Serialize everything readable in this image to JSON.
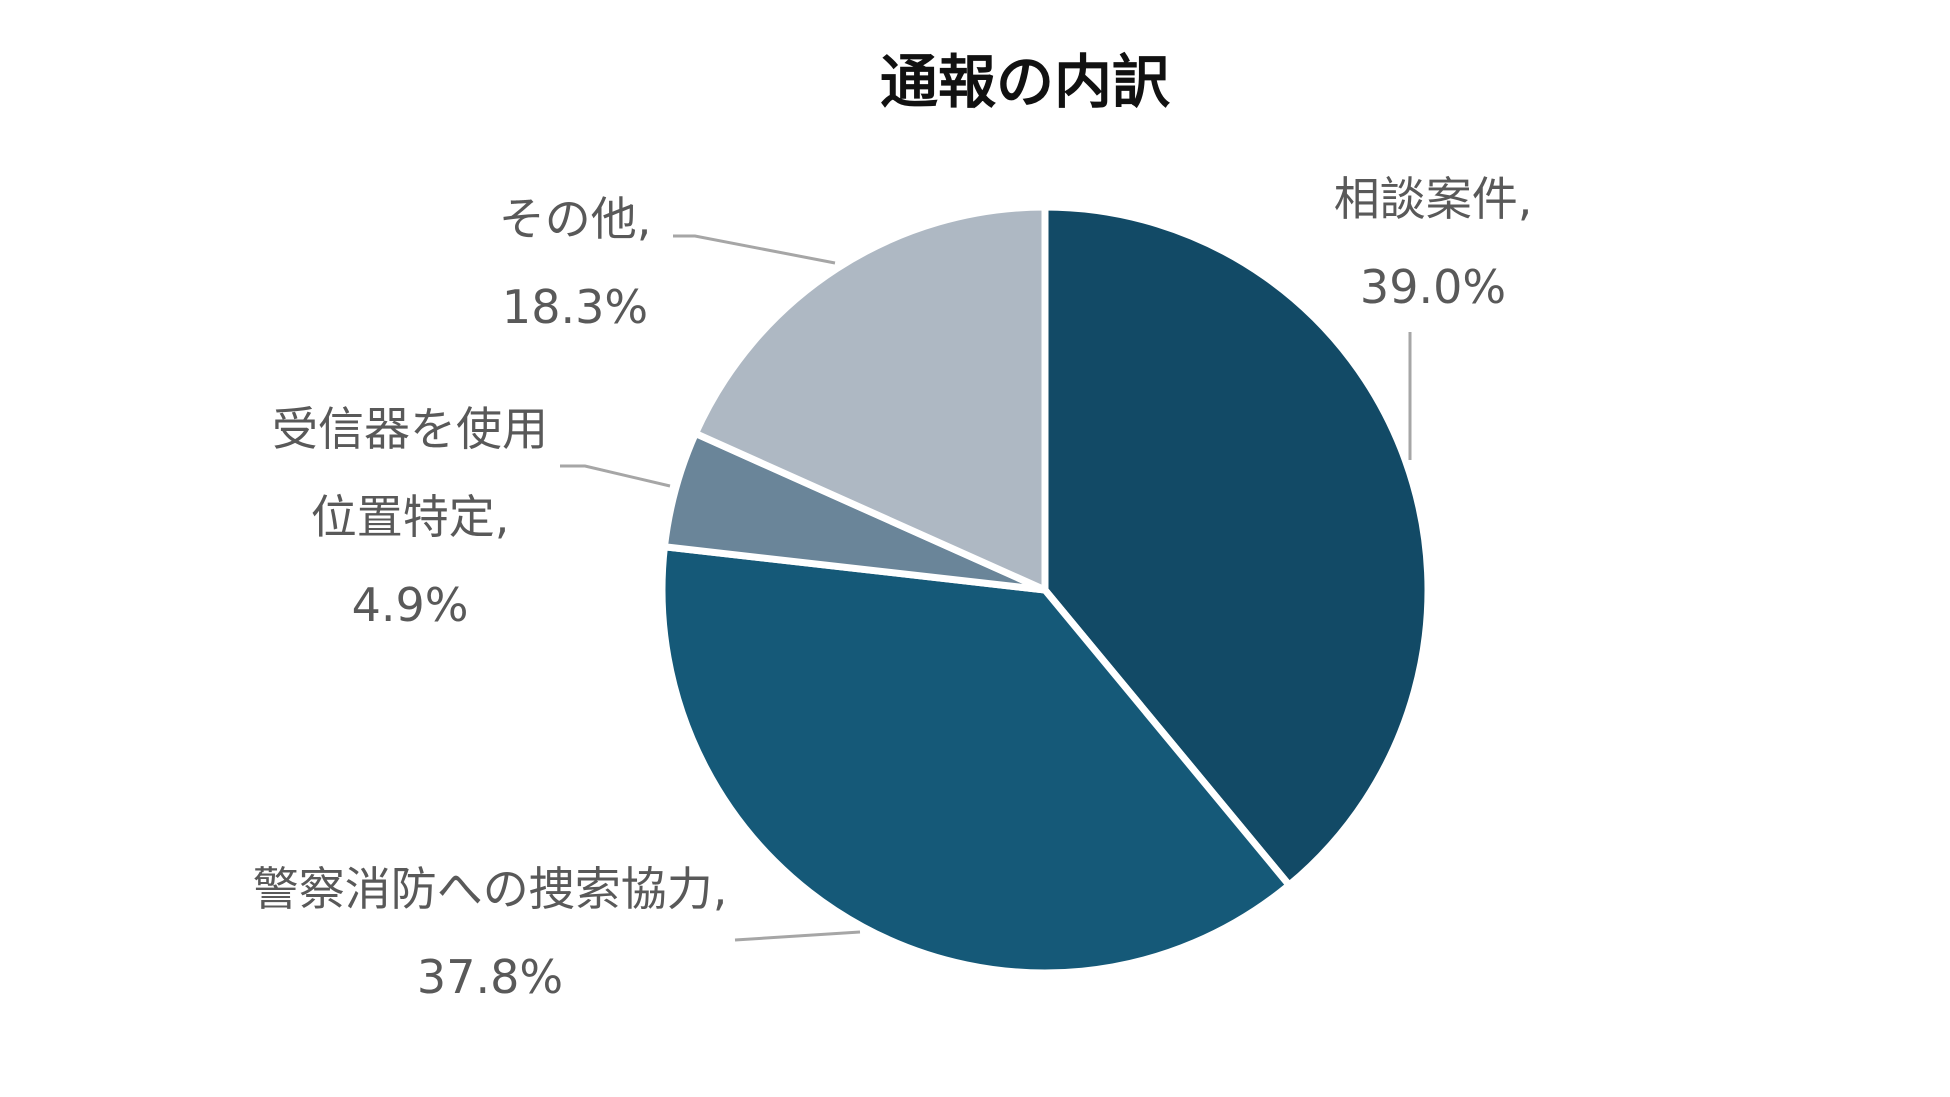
{
  "chart_data": {
    "type": "pie",
    "title": "通報の内訳",
    "start_angle_deg": 0,
    "direction": "clockwise",
    "slices": [
      {
        "label_lines": [
          "相談案件,",
          "39.0%"
        ],
        "value": 39.0,
        "color": "#124a66"
      },
      {
        "label_lines": [
          "警察消防への捜索協力,",
          "37.8%"
        ],
        "value": 37.8,
        "color": "#155978"
      },
      {
        "label_lines": [
          "受信器を使用",
          "位置特定,",
          "4.9%"
        ],
        "value": 4.9,
        "color": "#6a8599"
      },
      {
        "label_lines": [
          "その他,",
          "18.3%"
        ],
        "value": 18.3,
        "color": "#aeb8c3"
      }
    ],
    "legend": "none"
  }
}
